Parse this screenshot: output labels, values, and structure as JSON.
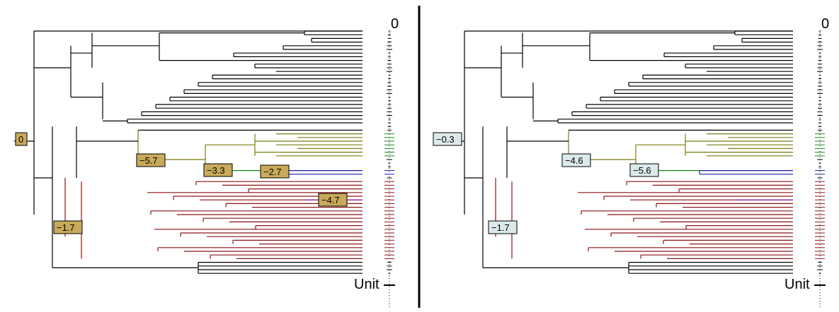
{
  "panels": [
    {
      "id": "left",
      "label_fill": "#c8aa5a",
      "axis_top_label": "0",
      "axis_bottom_label": "Unit",
      "shift_labels": [
        "0",
        "−5.7",
        "−3.3",
        "−2.7",
        "−4.7",
        "−1.7"
      ]
    },
    {
      "id": "right",
      "label_fill": "#dce9ea",
      "axis_top_label": "0",
      "axis_bottom_label": "Unit",
      "shift_labels": [
        "−0.3",
        "−4.6",
        "−5.6",
        "−1.7"
      ]
    }
  ],
  "colors": {
    "background": "#000000",
    "olive": "#7a7a12",
    "green": "#138a13",
    "blue": "#1a1aa0",
    "purple": "#7a1aa8",
    "red": "#8b1414",
    "divider": "#000000"
  }
}
